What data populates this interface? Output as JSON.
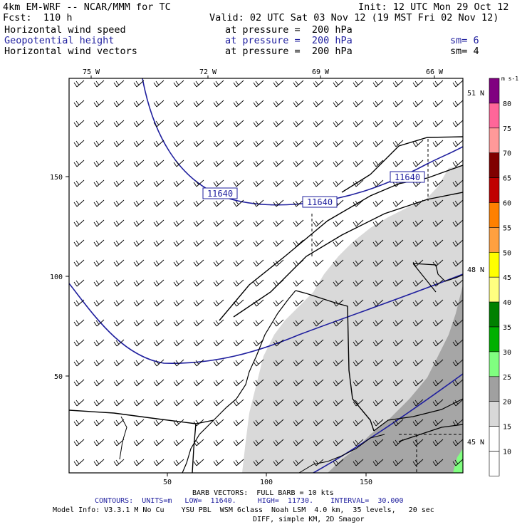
{
  "header": {
    "model": "4km EM-WRF -- NCAR/MMM for TC",
    "init": "Init: 12 UTC Mon 29 Oct 12",
    "fcst": "Fcst:  110 h",
    "valid": "Valid: 02 UTC Sat 03 Nov 12 (19 MST Fri 02 Nov 12)",
    "rows": [
      {
        "label": "Horizontal wind speed",
        "pressure": "at pressure =  200 hPa",
        "sm": "",
        "color": "#000000"
      },
      {
        "label": "Geopotential height",
        "pressure": "at pressure =  200 hPa",
        "sm": "sm= 6",
        "color": "#1f1f9e"
      },
      {
        "label": "Horizontal wind vectors",
        "pressure": "at pressure =  200 hPa",
        "sm": "sm= 4",
        "color": "#000000"
      }
    ]
  },
  "axes": {
    "top_lon": [
      "75 W",
      "72 W",
      "69 W",
      "66 W"
    ],
    "right_lat": [
      "51 N",
      "48 N",
      "45 N"
    ],
    "left_ticks": [
      "150",
      "100",
      "50"
    ],
    "bottom_ticks": [
      "50",
      "100",
      "150"
    ]
  },
  "contour_labels": [
    "11640",
    "11640",
    "11640"
  ],
  "colorbar": {
    "units": "m s-1",
    "levels": [
      "80",
      "75",
      "70",
      "65",
      "60",
      "55",
      "50",
      "45",
      "40",
      "35",
      "30",
      "25",
      "20",
      "15",
      "10"
    ],
    "colors": [
      "#800080",
      "#ff6699",
      "#ff9999",
      "#800000",
      "#c00000",
      "#ff8000",
      "#ffa040",
      "#ffff00",
      "#ffff80",
      "#008000",
      "#00b000",
      "#80ff80",
      "#a0a0a0",
      "#d8d8d8",
      "#ffffff",
      "#ffffff"
    ]
  },
  "footer": {
    "barb": "BARB VECTORS:  FULL BARB = 10 kts",
    "contours": "CONTOURS:  UNITS=m   LOW=  11640.     HIGH=  11730.    INTERVAL=  30.000",
    "model_info": "Model Info: V3.3.1 M No Cu    YSU PBL  WSM 6class  Noah LSM  4.0 km,  35 levels,   20 sec",
    "diff": "DIFF, simple KM, 2D Smagor"
  }
}
